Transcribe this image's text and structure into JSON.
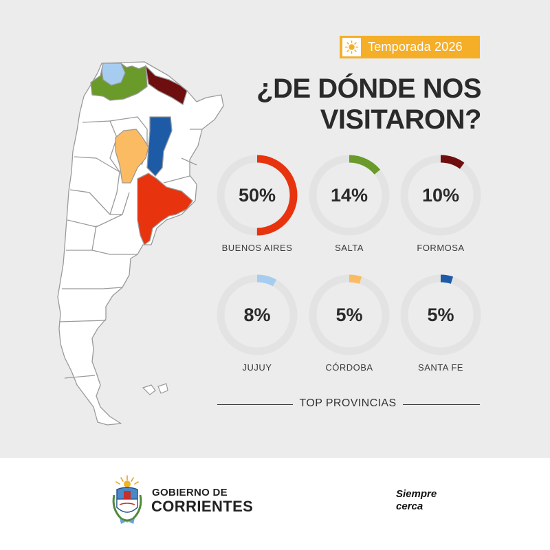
{
  "badge": {
    "text": "Temporada 2026",
    "icon": "sun-icon",
    "color": "#f5ae28"
  },
  "headline": {
    "line1": "¿DE DÓNDE NOS",
    "line2": "VISITARON?"
  },
  "provinces": [
    {
      "name": "BUENOS AIRES",
      "percent": 50,
      "label": "50%",
      "color": "#e8330f"
    },
    {
      "name": "SALTA",
      "percent": 14,
      "label": "14%",
      "color": "#6a9a2a"
    },
    {
      "name": "FORMOSA",
      "percent": 10,
      "label": "10%",
      "color": "#6e0e0e"
    },
    {
      "name": "JUJUY",
      "percent": 8,
      "label": "8%",
      "color": "#a6cdf0"
    },
    {
      "name": "CÓRDOBA",
      "percent": 5,
      "label": "5%",
      "color": "#fbbb62"
    },
    {
      "name": "SANTA FE",
      "percent": 5,
      "label": "5%",
      "color": "#1e5ba6"
    }
  ],
  "section_label": "TOP PROVINCIAS",
  "ring_track_color": "#e3e3e3",
  "footer": {
    "gov_line1": "GOBIERNO DE",
    "gov_line2": "CORRIENTES",
    "slogan_line1": "Siempre",
    "slogan_line2": "cerca"
  }
}
